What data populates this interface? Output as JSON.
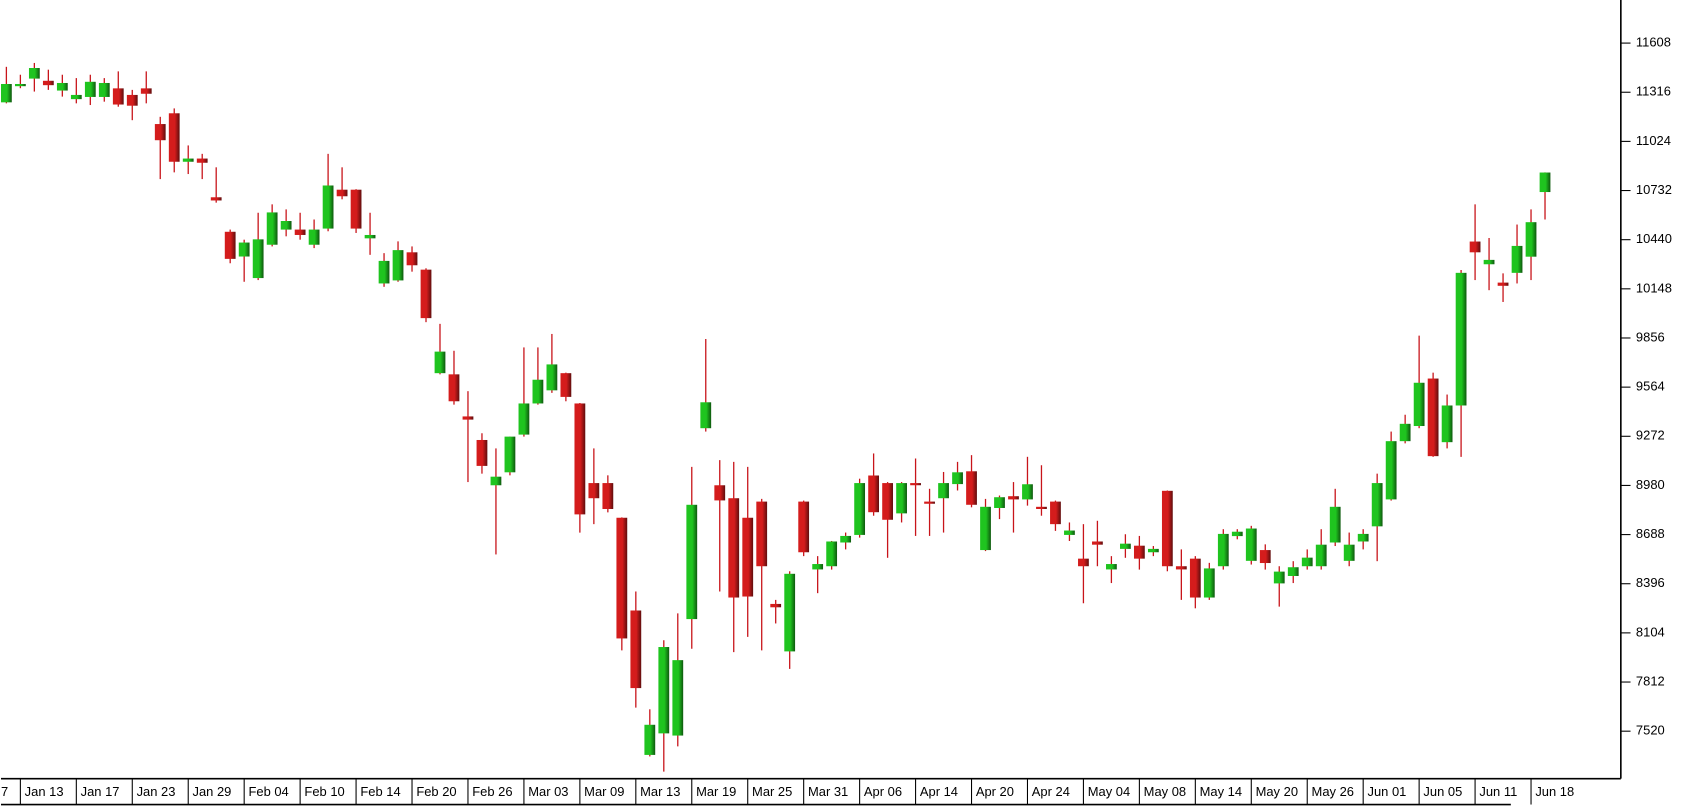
{
  "chart_data": {
    "type": "candlestick",
    "categories": [
      "7",
      "Jan 13",
      null,
      null,
      null,
      "Jan 17",
      null,
      null,
      null,
      "Jan 23",
      null,
      null,
      null,
      "Jan 29",
      null,
      null,
      null,
      "Feb 04",
      null,
      null,
      null,
      "Feb 10",
      null,
      null,
      null,
      "Feb 14",
      null,
      null,
      null,
      "Feb 20",
      null,
      null,
      null,
      "Feb 26",
      null,
      null,
      null,
      "Mar 03",
      null,
      null,
      null,
      "Mar 09",
      null,
      null,
      null,
      "Mar 13",
      null,
      null,
      null,
      "Mar 19",
      null,
      null,
      null,
      "Mar 25",
      null,
      null,
      null,
      "Mar 31",
      null,
      null,
      null,
      "Apr 06",
      null,
      null,
      null,
      "Apr 14",
      null,
      null,
      null,
      "Apr 20",
      null,
      null,
      null,
      "Apr 24",
      null,
      null,
      null,
      "May 04",
      null,
      null,
      null,
      "May 08",
      null,
      null,
      null,
      "May 14",
      null,
      null,
      null,
      "May 20",
      null,
      null,
      null,
      "May 26",
      null,
      null,
      null,
      "Jun 01",
      null,
      null,
      null,
      "Jun 05",
      null,
      null,
      null,
      "Jun 11",
      null,
      null,
      null,
      "Jun 18",
      null
    ],
    "open": [
      11256,
      11352,
      11397,
      11384,
      11326,
      11275,
      11288,
      11288,
      11339,
      11300,
      11339,
      11127,
      11191,
      10903,
      10922,
      10692,
      10487,
      10340,
      10212,
      10410,
      10500,
      10500,
      10410,
      10506,
      10737,
      10737,
      10448,
      10180,
      10198,
      10365,
      10262,
      9647,
      9640,
      9390,
      9250,
      8981,
      9058,
      9282,
      9467,
      9545,
      9647,
      9467,
      8994,
      8994,
      8788,
      8237,
      7379,
      7507,
      7494,
      8186,
      9320,
      8981,
      8904,
      8788,
      8884,
      8276,
      7994,
      8884,
      8481,
      8500,
      8641,
      8686,
      9039,
      8994,
      8814,
      8994,
      8884,
      8904,
      8988,
      9064,
      8596,
      8846,
      8916,
      8897,
      8853,
      8884,
      8686,
      8545,
      8647,
      8481,
      8603,
      8622,
      8583,
      8948,
      8500,
      8545,
      8314,
      8500,
      8679,
      8532,
      8596,
      8398,
      8442,
      8500,
      8500,
      8641,
      8532,
      8647,
      8737,
      8897,
      9243,
      9333,
      9615,
      9237,
      9455,
      10429,
      10294,
      10185,
      10243,
      10339,
      10723
    ],
    "high": [
      11467,
      11420,
      11490,
      11450,
      11420,
      11400,
      11420,
      11400,
      11440,
      11330,
      11440,
      11170,
      11220,
      11000,
      10950,
      10870,
      10500,
      10440,
      10600,
      10650,
      10620,
      10600,
      10560,
      10950,
      10870,
      10740,
      10600,
      10360,
      10430,
      10400,
      10270,
      9940,
      9780,
      9540,
      9290,
      9200,
      9270,
      9800,
      9800,
      9880,
      9650,
      9470,
      9200,
      9040,
      8790,
      8350,
      7650,
      8060,
      8220,
      9090,
      9850,
      9130,
      9120,
      9090,
      8900,
      8300,
      8470,
      8890,
      8560,
      8650,
      8700,
      9020,
      9170,
      9000,
      9000,
      9140,
      8960,
      9060,
      9120,
      9160,
      8900,
      8920,
      9000,
      9150,
      9100,
      8890,
      8760,
      8750,
      8770,
      8560,
      8690,
      8680,
      8620,
      8950,
      8600,
      8560,
      8520,
      8720,
      8720,
      8740,
      8630,
      8500,
      8530,
      8600,
      8720,
      8960,
      8700,
      8720,
      9050,
      9300,
      9400,
      9870,
      9650,
      9520,
      10260,
      10650,
      10450,
      10240,
      10530,
      10620,
      10840
    ],
    "low": [
      11250,
      11340,
      11320,
      11330,
      11290,
      11250,
      11240,
      11260,
      11230,
      11150,
      11250,
      10800,
      10840,
      10830,
      10800,
      10660,
      10300,
      10190,
      10200,
      10400,
      10460,
      10440,
      10390,
      10490,
      10680,
      10480,
      10350,
      10160,
      10190,
      10250,
      9950,
      9640,
      9460,
      9000,
      9050,
      8570,
      9040,
      9270,
      9460,
      9530,
      9480,
      8700,
      8750,
      8820,
      8000,
      7660,
      7370,
      7280,
      7430,
      8010,
      9300,
      8350,
      7990,
      8080,
      8000,
      8160,
      7890,
      8560,
      8340,
      8480,
      8600,
      8670,
      8800,
      8550,
      8760,
      8680,
      8680,
      8700,
      8950,
      8850,
      8590,
      8780,
      8700,
      8860,
      8800,
      8710,
      8650,
      8280,
      8500,
      8400,
      8550,
      8480,
      8560,
      8470,
      8300,
      8250,
      8300,
      8480,
      8660,
      8510,
      8480,
      8260,
      8400,
      8480,
      8480,
      8620,
      8500,
      8600,
      8530,
      8890,
      9230,
      9320,
      9150,
      9200,
      9150,
      10200,
      10140,
      10070,
      10180,
      10200,
      10560
    ],
    "close": [
      11365,
      11365,
      11460,
      11358,
      11371,
      11300,
      11378,
      11371,
      11243,
      11236,
      11307,
      11031,
      10903,
      10922,
      10897,
      10673,
      10326,
      10423,
      10442,
      10602,
      10551,
      10468,
      10500,
      10762,
      10698,
      10506,
      10468,
      10314,
      10378,
      10288,
      9974,
      9775,
      9480,
      9371,
      9096,
      9032,
      9270,
      9467,
      9608,
      9699,
      9506,
      8808,
      8904,
      8840,
      8071,
      7776,
      7558,
      8020,
      7942,
      8865,
      9474,
      8891,
      8314,
      8320,
      8500,
      8256,
      8455,
      8583,
      8513,
      8647,
      8680,
      8994,
      8821,
      8776,
      8994,
      8988,
      8872,
      8994,
      9058,
      8865,
      8853,
      8910,
      8897,
      8987,
      8840,
      8750,
      8712,
      8500,
      8628,
      8513,
      8634,
      8545,
      8603,
      8500,
      8481,
      8314,
      8487,
      8692,
      8705,
      8724,
      8519,
      8468,
      8494,
      8551,
      8628,
      8853,
      8628,
      8692,
      8994,
      9243,
      9346,
      9590,
      9154,
      9455,
      10243,
      10365,
      10320,
      10166,
      10403,
      10544,
      10839
    ],
    "ylim": [
      7238,
      11864
    ],
    "yticks": [
      7520,
      7812,
      8104,
      8396,
      8688,
      8980,
      9272,
      9564,
      9856,
      10148,
      10440,
      10732,
      11024,
      11316,
      11608
    ],
    "up_color": "#1fc41f",
    "down_color": "#d41c1c",
    "wick_color": "#c8141a"
  }
}
